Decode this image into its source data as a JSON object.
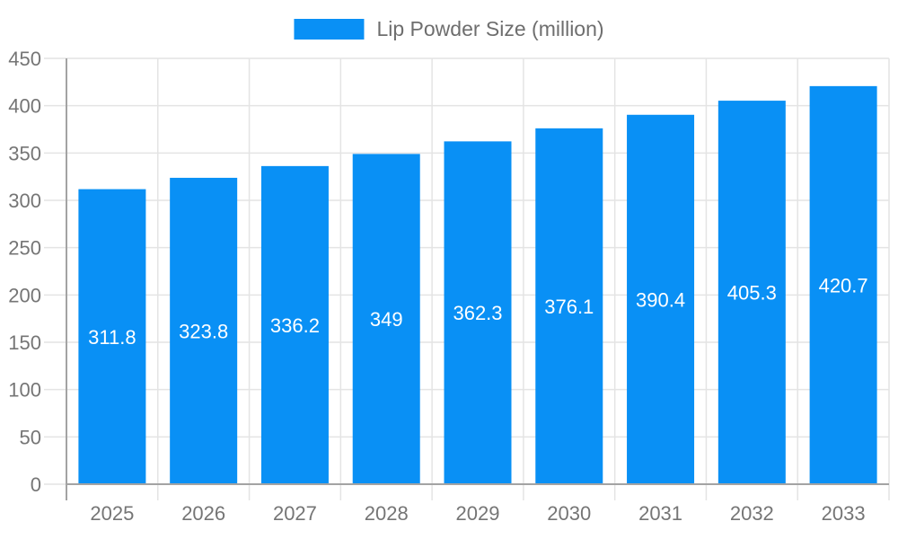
{
  "chart_data": {
    "type": "bar",
    "title": "Lip Powder Size (million)",
    "legend": {
      "label": "Lip Powder Size (million)",
      "position": "top-center"
    },
    "categories": [
      "2025",
      "2026",
      "2027",
      "2028",
      "2029",
      "2030",
      "2031",
      "2032",
      "2033"
    ],
    "series": [
      {
        "name": "Lip Powder Size (million)",
        "values": [
          311.8,
          323.8,
          336.2,
          349,
          362.3,
          376.1,
          390.4,
          405.3,
          420.7
        ]
      }
    ],
    "value_labels": [
      "311.8",
      "323.8",
      "336.2",
      "349",
      "362.3",
      "376.1",
      "390.4",
      "405.3",
      "420.7"
    ],
    "xlabel": "",
    "ylabel": "",
    "ylim": [
      0,
      450
    ],
    "ytick_step": 50,
    "grid": "on",
    "colors": {
      "bar": "#0990f5",
      "grid_line": "#e4e4e4",
      "axis_line": "#a3a3a3",
      "tick_text": "#757575",
      "legend_text": "#6e6e6e",
      "value_label_text": "#ffffff",
      "background": "#ffffff"
    }
  }
}
